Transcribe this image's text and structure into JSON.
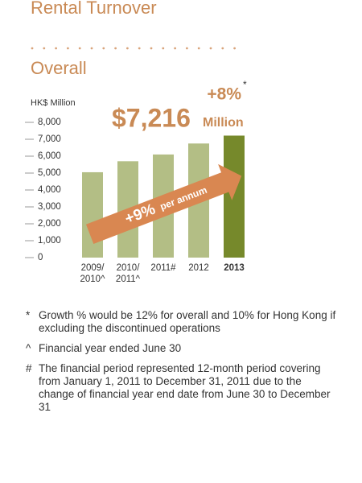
{
  "header": {
    "title": "Rental Turnover",
    "subtitle": "Overall"
  },
  "chart_data": {
    "type": "bar",
    "y_label": "HK$ Million",
    "categories": [
      "2009/2010^",
      "2010/2011^",
      "2011#",
      "2012",
      "2013"
    ],
    "values": [
      5050,
      5700,
      6100,
      6750,
      7216
    ],
    "colors": [
      "#b3be85",
      "#b3be85",
      "#b3be85",
      "#b3be85",
      "#76892b"
    ],
    "ylim": [
      0,
      8000
    ],
    "yticks": [
      0,
      {
        "value": 1000,
        "label": "1,000"
      },
      {
        "value": 2000,
        "label": "2,000"
      },
      {
        "value": 3000,
        "label": "3,000"
      },
      {
        "value": 4000,
        "label": "4,000"
      },
      {
        "value": 5000,
        "label": "5,000"
      },
      {
        "value": 6000,
        "label": "6,000"
      },
      {
        "value": 7000,
        "label": "7,000"
      },
      {
        "value": 8000,
        "label": "8,000"
      }
    ],
    "annotations": {
      "growth": "+8%",
      "growth_note": "*",
      "total": "$7,216",
      "total_unit": "Million",
      "trend": "+9%",
      "trend_unit": "per annum"
    }
  },
  "footnotes": [
    {
      "marker": "*",
      "text": "Growth % would be 12% for overall and 10% for Hong Kong if excluding the discontinued operations"
    },
    {
      "marker": "^",
      "text": "Financial year ended June 30"
    },
    {
      "marker": "#",
      "text": "The financial period represented 12-month period covering from January 1, 2011 to December 31, 2011 due to the change of financial year end date from June 30 to December 31"
    }
  ]
}
